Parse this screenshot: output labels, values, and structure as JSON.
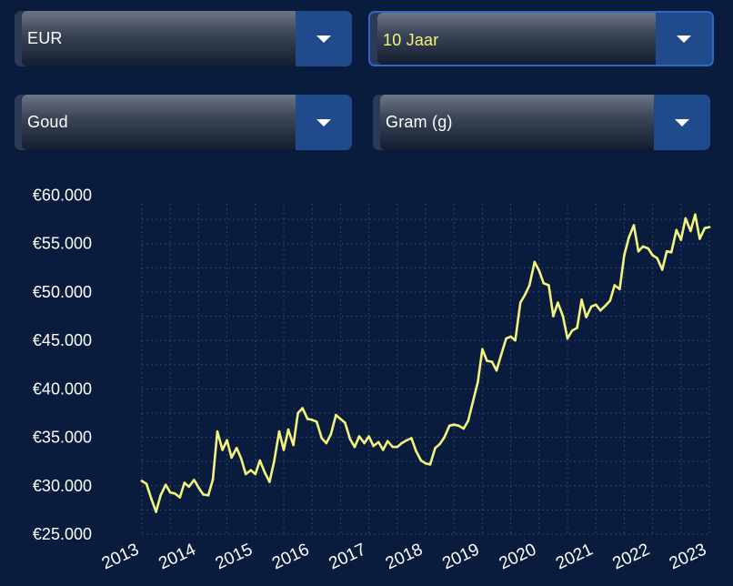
{
  "controls": {
    "currency": "EUR",
    "period": "10 Jaar",
    "metal": "Goud",
    "unit": "Gram (g)"
  },
  "colors": {
    "background": "#0a1c3d",
    "line": "#f4f37c",
    "dropdown_button": "#1f4a8c",
    "active_border": "#2f68c6",
    "grid": "#2c436b"
  },
  "icons": [
    "chevron-down-icon"
  ],
  "chart_data": {
    "type": "line",
    "title": "",
    "xlabel": "",
    "ylabel": "",
    "ylim": [
      25000,
      60000
    ],
    "xlim": [
      2013,
      2023
    ],
    "y_ticks": [
      25000,
      30000,
      35000,
      40000,
      45000,
      50000,
      55000,
      60000
    ],
    "y_tick_labels": [
      "€25.000",
      "€30.000",
      "€35.000",
      "€40.000",
      "€45.000",
      "€50.000",
      "€55.000",
      "€60.000"
    ],
    "x_ticks": [
      2013,
      2014,
      2015,
      2016,
      2017,
      2018,
      2019,
      2020,
      2021,
      2022,
      2023
    ],
    "x_tick_labels": [
      "2013",
      "2014",
      "2015",
      "2016",
      "2017",
      "2018",
      "2019",
      "2020",
      "2021",
      "2022",
      "2023"
    ],
    "grid": true,
    "series": [
      {
        "x": [
          2013.0,
          2013.08,
          2013.17,
          2013.25,
          2013.33,
          2013.42,
          2013.5,
          2013.58,
          2013.67,
          2013.75,
          2013.83,
          2013.92,
          2014.0,
          2014.08,
          2014.17,
          2014.25,
          2014.33,
          2014.42,
          2014.5,
          2014.58,
          2014.67,
          2014.75,
          2014.83,
          2014.92,
          2015.0,
          2015.08,
          2015.17,
          2015.25,
          2015.33,
          2015.42,
          2015.5,
          2015.58,
          2015.67,
          2015.75,
          2015.83,
          2015.92,
          2016.0,
          2016.08,
          2016.17,
          2016.25,
          2016.33,
          2016.42,
          2016.5,
          2016.58,
          2016.67,
          2016.75,
          2016.83,
          2016.92,
          2017.0,
          2017.08,
          2017.17,
          2017.25,
          2017.33,
          2017.42,
          2017.5,
          2017.58,
          2017.67,
          2017.75,
          2017.83,
          2017.92,
          2018.0,
          2018.08,
          2018.17,
          2018.25,
          2018.33,
          2018.42,
          2018.5,
          2018.58,
          2018.67,
          2018.75,
          2018.83,
          2018.92,
          2019.0,
          2019.08,
          2019.17,
          2019.25,
          2019.33,
          2019.42,
          2019.5,
          2019.58,
          2019.67,
          2019.75,
          2019.83,
          2019.92,
          2020.0,
          2020.08,
          2020.17,
          2020.25,
          2020.33,
          2020.42,
          2020.5,
          2020.58,
          2020.67,
          2020.75,
          2020.83,
          2020.92,
          2021.0,
          2021.08,
          2021.17,
          2021.25,
          2021.33,
          2021.42,
          2021.5,
          2021.58,
          2021.67,
          2021.75,
          2021.83,
          2021.92,
          2022.0,
          2022.08,
          2022.17,
          2022.25,
          2022.33,
          2022.42,
          2022.5,
          2022.58,
          2022.67,
          2022.75,
          2022.83,
          2022.92,
          2023.0
        ],
        "y": [
          30500,
          30200,
          28600,
          27300,
          29000,
          30100,
          29300,
          29200,
          28800,
          30300,
          29900,
          30600,
          29800,
          29100,
          29000,
          30600,
          35600,
          33700,
          34700,
          32900,
          33900,
          32800,
          31200,
          31600,
          31200,
          32600,
          31300,
          30400,
          32500,
          35600,
          33700,
          35800,
          34200,
          37500,
          38000,
          36900,
          36800,
          36600,
          34900,
          34400,
          35300,
          37300,
          36900,
          36500,
          34800,
          34000,
          35100,
          34400,
          35100,
          34100,
          34500,
          33700,
          34600,
          34000,
          34000,
          34400,
          34700,
          34900,
          33600,
          32600,
          32300,
          32200,
          33900,
          34300,
          35000,
          36200,
          36300,
          36200,
          35900,
          36700,
          38600,
          40700,
          44100,
          42900,
          42800,
          41900,
          43500,
          45200,
          45400,
          45000,
          48900,
          49700,
          50700,
          53100,
          52200,
          50900,
          50700,
          47500,
          48900,
          47500,
          45200,
          46000,
          46300,
          49200,
          47400,
          48500,
          48700,
          48100,
          48600,
          49100,
          50700,
          50300,
          53800,
          55600,
          56900,
          54200,
          54700,
          54500,
          53800,
          53500,
          52300,
          54200,
          54100,
          56400,
          55400,
          57600,
          56300,
          58000,
          55500,
          56600,
          56700
        ]
      }
    ]
  }
}
